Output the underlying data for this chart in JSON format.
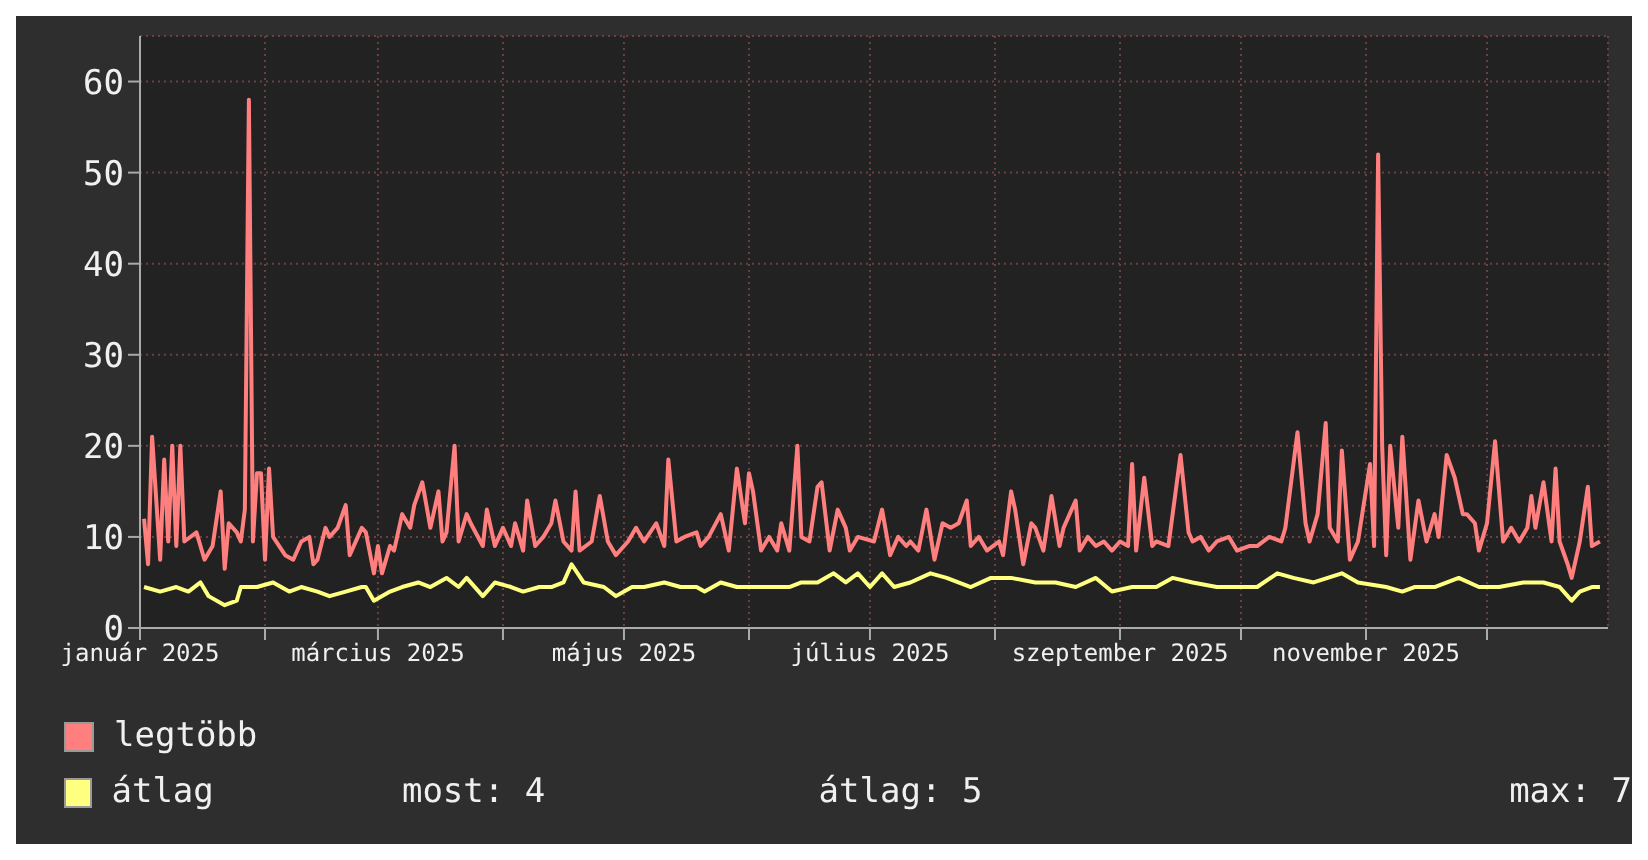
{
  "chart_data": {
    "type": "line",
    "xlim": [
      "2025-01-01",
      "2025-12-31"
    ],
    "xticks": [
      {
        "value": "2025-01-01",
        "label": "január 2025"
      },
      {
        "value": "2025-02-01",
        "label": null
      },
      {
        "value": "2025-03-01",
        "label": "március 2025"
      },
      {
        "value": "2025-04-01",
        "label": null
      },
      {
        "value": "2025-05-01",
        "label": "május 2025"
      },
      {
        "value": "2025-06-01",
        "label": null
      },
      {
        "value": "2025-07-01",
        "label": "július 2025"
      },
      {
        "value": "2025-08-01",
        "label": null
      },
      {
        "value": "2025-09-01",
        "label": "szeptember 2025"
      },
      {
        "value": "2025-10-01",
        "label": null
      },
      {
        "value": "2025-11-01",
        "label": "november 2025"
      },
      {
        "value": "2025-12-01",
        "label": null
      }
    ],
    "ylim": [
      0,
      65
    ],
    "yticks": [
      0,
      10,
      20,
      30,
      40,
      50,
      60
    ],
    "grid": true,
    "legend": "bottom left",
    "marker": "none",
    "line_style": "solid",
    "series": [
      {
        "name": "legtöbb",
        "color": "#ff7f7f",
        "x": [
          "2025-01-02",
          "2025-01-03",
          "2025-01-04",
          "2025-01-06",
          "2025-01-07",
          "2025-01-08",
          "2025-01-09",
          "2025-01-10",
          "2025-01-11",
          "2025-01-12",
          "2025-01-15",
          "2025-01-17",
          "2025-01-19",
          "2025-01-21",
          "2025-01-22",
          "2025-01-23",
          "2025-01-25",
          "2025-01-26",
          "2025-01-27",
          "2025-01-28",
          "2025-01-29",
          "2025-01-30",
          "2025-01-31",
          "2025-02-01",
          "2025-02-02",
          "2025-02-03",
          "2025-02-06",
          "2025-02-08",
          "2025-02-10",
          "2025-02-12",
          "2025-02-13",
          "2025-02-14",
          "2025-02-16",
          "2025-02-17",
          "2025-02-19",
          "2025-02-21",
          "2025-02-22",
          "2025-02-25",
          "2025-02-26",
          "2025-02-28",
          "2025-03-01",
          "2025-03-02",
          "2025-03-04",
          "2025-03-05",
          "2025-03-07",
          "2025-03-09",
          "2025-03-10",
          "2025-03-12",
          "2025-03-14",
          "2025-03-16",
          "2025-03-17",
          "2025-03-18",
          "2025-03-20",
          "2025-03-21",
          "2025-03-23",
          "2025-03-24",
          "2025-03-27",
          "2025-03-28",
          "2025-03-30",
          "2025-04-01",
          "2025-04-03",
          "2025-04-04",
          "2025-04-06",
          "2025-04-07",
          "2025-04-09",
          "2025-04-11",
          "2025-04-13",
          "2025-04-14",
          "2025-04-16",
          "2025-04-18",
          "2025-04-19",
          "2025-04-20",
          "2025-04-23",
          "2025-04-25",
          "2025-04-27",
          "2025-04-29",
          "2025-05-02",
          "2025-05-04",
          "2025-05-06",
          "2025-05-09",
          "2025-05-11",
          "2025-05-12",
          "2025-05-14",
          "2025-05-16",
          "2025-05-19",
          "2025-05-20",
          "2025-05-22",
          "2025-05-25",
          "2025-05-27",
          "2025-05-29",
          "2025-05-31",
          "2025-06-01",
          "2025-06-02",
          "2025-06-04",
          "2025-06-06",
          "2025-06-08",
          "2025-06-09",
          "2025-06-11",
          "2025-06-13",
          "2025-06-14",
          "2025-06-16",
          "2025-06-18",
          "2025-06-19",
          "2025-06-21",
          "2025-06-23",
          "2025-06-25",
          "2025-06-26",
          "2025-06-28",
          "2025-07-02",
          "2025-07-04",
          "2025-07-06",
          "2025-07-08",
          "2025-07-10",
          "2025-07-11",
          "2025-07-13",
          "2025-07-15",
          "2025-07-17",
          "2025-07-19",
          "2025-07-21",
          "2025-07-23",
          "2025-07-25",
          "2025-07-26",
          "2025-07-28",
          "2025-07-30",
          "2025-08-02",
          "2025-08-03",
          "2025-08-05",
          "2025-08-06",
          "2025-08-08",
          "2025-08-10",
          "2025-08-11",
          "2025-08-13",
          "2025-08-15",
          "2025-08-17",
          "2025-08-18",
          "2025-08-21",
          "2025-08-22",
          "2025-08-24",
          "2025-08-26",
          "2025-08-28",
          "2025-08-30",
          "2025-09-01",
          "2025-09-03",
          "2025-09-04",
          "2025-09-05",
          "2025-09-07",
          "2025-09-09",
          "2025-09-10",
          "2025-09-13",
          "2025-09-16",
          "2025-09-18",
          "2025-09-19",
          "2025-09-21",
          "2025-09-23",
          "2025-09-25",
          "2025-09-28",
          "2025-09-30",
          "2025-10-03",
          "2025-10-05",
          "2025-10-08",
          "2025-10-11",
          "2025-10-12",
          "2025-10-15",
          "2025-10-17",
          "2025-10-18",
          "2025-10-20",
          "2025-10-22",
          "2025-10-23",
          "2025-10-25",
          "2025-10-26",
          "2025-10-28",
          "2025-10-30",
          "2025-11-02",
          "2025-11-03",
          "2025-11-04",
          "2025-11-05",
          "2025-11-06",
          "2025-11-07",
          "2025-11-09",
          "2025-11-10",
          "2025-11-12",
          "2025-11-14",
          "2025-11-16",
          "2025-11-18",
          "2025-11-19",
          "2025-11-21",
          "2025-11-23",
          "2025-11-25",
          "2025-11-26",
          "2025-11-28",
          "2025-11-29",
          "2025-12-01",
          "2025-12-03",
          "2025-12-05",
          "2025-12-07",
          "2025-12-09",
          "2025-12-11",
          "2025-12-12",
          "2025-12-13",
          "2025-12-15",
          "2025-12-17",
          "2025-12-18",
          "2025-12-19",
          "2025-12-21",
          "2025-12-22",
          "2025-12-24",
          "2025-12-26",
          "2025-12-27",
          "2025-12-29"
        ],
        "values": [
          12,
          7,
          21,
          7.5,
          18.5,
          9.5,
          20,
          9,
          20,
          9.5,
          10.5,
          7.5,
          9,
          15,
          6.5,
          11.5,
          10.5,
          9.5,
          13,
          58,
          9.5,
          17,
          17,
          7.5,
          17.5,
          10,
          8,
          7.5,
          9.5,
          10,
          7,
          7.5,
          11,
          10,
          11,
          13.5,
          8,
          11,
          10.5,
          6,
          9,
          6,
          9,
          8.5,
          12.5,
          11,
          13.5,
          16,
          11,
          15,
          9.5,
          10.5,
          20,
          9.5,
          12.5,
          11.5,
          9,
          13,
          9,
          11,
          9,
          11.5,
          8.5,
          14,
          9,
          10,
          11.5,
          14,
          9.5,
          8.5,
          15,
          8.5,
          9.5,
          14.5,
          9.5,
          8,
          9.5,
          11,
          9.5,
          11.5,
          9,
          18.5,
          9.5,
          10,
          10.5,
          9,
          10,
          12.5,
          8.5,
          17.5,
          11.5,
          17,
          15,
          8.5,
          10,
          8.5,
          11.5,
          8.5,
          20,
          10,
          9.5,
          15.5,
          16,
          8.5,
          13,
          11,
          8.5,
          10,
          9.5,
          13,
          8,
          10,
          9,
          9.5,
          8.5,
          13,
          7.5,
          11.5,
          11,
          11.5,
          14,
          9,
          10,
          8.5,
          9.5,
          8,
          15,
          13,
          7,
          11.5,
          11,
          8.5,
          14.5,
          9,
          11,
          14,
          8.5,
          10,
          9,
          9.5,
          8.5,
          9.5,
          9,
          18,
          8.5,
          16.5,
          9,
          9.5,
          9,
          19,
          10.5,
          9.5,
          10,
          8.5,
          9.5,
          10,
          8.5,
          9,
          9,
          10,
          9.5,
          11,
          21.5,
          11.5,
          9.5,
          12.5,
          22.5,
          11,
          9.5,
          19.5,
          7.5,
          9.5,
          18,
          9,
          52,
          20,
          8,
          20,
          11,
          21,
          7.5,
          14,
          9.5,
          12.5,
          10,
          19,
          16.5,
          12.5,
          12.5,
          11.5,
          8.5,
          11.5,
          20.5,
          9.5,
          11,
          9.5,
          11,
          14.5,
          11,
          16,
          9.5,
          17.5,
          9.5,
          7,
          5.5,
          9.5,
          15.5,
          9,
          9.5
        ]
      },
      {
        "name": "átlag",
        "color": "#ffff80",
        "x": [
          "2025-01-02",
          "2025-01-06",
          "2025-01-10",
          "2025-01-13",
          "2025-01-16",
          "2025-01-18",
          "2025-01-22",
          "2025-01-25",
          "2025-01-26",
          "2025-01-30",
          "2025-02-03",
          "2025-02-07",
          "2025-02-10",
          "2025-02-14",
          "2025-02-17",
          "2025-02-21",
          "2025-02-25",
          "2025-02-26",
          "2025-02-28",
          "2025-03-04",
          "2025-03-07",
          "2025-03-11",
          "2025-03-14",
          "2025-03-18",
          "2025-03-21",
          "2025-03-23",
          "2025-03-27",
          "2025-03-30",
          "2025-04-03",
          "2025-04-06",
          "2025-04-10",
          "2025-04-13",
          "2025-04-16",
          "2025-04-18",
          "2025-04-21",
          "2025-04-26",
          "2025-04-29",
          "2025-05-03",
          "2025-05-06",
          "2025-05-11",
          "2025-05-15",
          "2025-05-19",
          "2025-05-21",
          "2025-05-25",
          "2025-05-29",
          "2025-06-02",
          "2025-06-06",
          "2025-06-11",
          "2025-06-14",
          "2025-06-18",
          "2025-06-22",
          "2025-06-25",
          "2025-06-28",
          "2025-07-01",
          "2025-07-04",
          "2025-07-07",
          "2025-07-11",
          "2025-07-16",
          "2025-07-20",
          "2025-07-26",
          "2025-07-31",
          "2025-08-05",
          "2025-08-11",
          "2025-08-16",
          "2025-08-21",
          "2025-08-26",
          "2025-08-30",
          "2025-09-04",
          "2025-09-10",
          "2025-09-14",
          "2025-09-19",
          "2025-09-25",
          "2025-09-30",
          "2025-10-05",
          "2025-10-10",
          "2025-10-14",
          "2025-10-19",
          "2025-10-26",
          "2025-10-30",
          "2025-11-06",
          "2025-11-10",
          "2025-11-13",
          "2025-11-18",
          "2025-11-24",
          "2025-11-29",
          "2025-12-04",
          "2025-12-10",
          "2025-12-15",
          "2025-12-19",
          "2025-12-22",
          "2025-12-24",
          "2025-12-27",
          "2025-12-29"
        ],
        "values": [
          4.5,
          4,
          4.5,
          4,
          5,
          3.5,
          2.5,
          3,
          4.5,
          4.5,
          5,
          4,
          4.5,
          4,
          3.5,
          4,
          4.5,
          4.5,
          3,
          4,
          4.5,
          5,
          4.5,
          5.5,
          4.5,
          5.5,
          3.5,
          5,
          4.5,
          4,
          4.5,
          4.5,
          5,
          7,
          5,
          4.5,
          3.5,
          4.5,
          4.5,
          5,
          4.5,
          4.5,
          4,
          5,
          4.5,
          4.5,
          4.5,
          4.5,
          5,
          5,
          6,
          5,
          6,
          4.5,
          6,
          4.5,
          5,
          6,
          5.5,
          4.5,
          5.5,
          5.5,
          5,
          5,
          4.5,
          5.5,
          4,
          4.5,
          4.5,
          5.5,
          5,
          4.5,
          4.5,
          4.5,
          6,
          5.5,
          5,
          6,
          5,
          4.5,
          4,
          4.5,
          4.5,
          5.5,
          4.5,
          4.5,
          5,
          5,
          4.5,
          3,
          4,
          4.5,
          4.5
        ]
      }
    ],
    "annotations": [
      "most: 4",
      "átlag: 5",
      "max: 7"
    ]
  }
}
